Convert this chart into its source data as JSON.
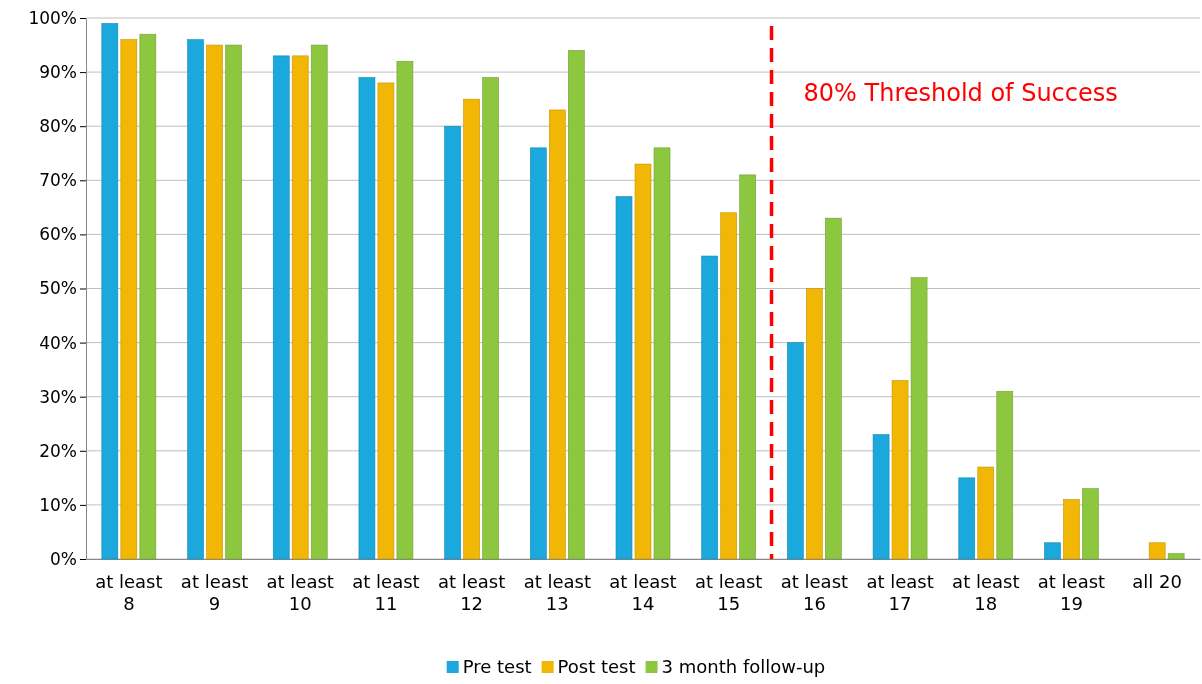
{
  "chart_data": {
    "type": "bar",
    "categories": [
      "at least 8",
      "at least 9",
      "at least 10",
      "at least 11",
      "at least 12",
      "at least 13",
      "at least 14",
      "at least 15",
      "at least 16",
      "at least 17",
      "at least 18",
      "at least 19",
      "all 20"
    ],
    "series": [
      {
        "name": "Pre test",
        "color": "#1ba8dc",
        "values": [
          99,
          96,
          93,
          89,
          80,
          76,
          67,
          56,
          40,
          23,
          15,
          3,
          0
        ]
      },
      {
        "name": "Post test",
        "color": "#f2b705",
        "values": [
          96,
          95,
          93,
          88,
          85,
          83,
          73,
          64,
          50,
          33,
          17,
          11,
          3
        ]
      },
      {
        "name": "3 month follow-up",
        "color": "#8dc63f",
        "values": [
          97,
          95,
          95,
          92,
          89,
          94,
          76,
          71,
          63,
          52,
          31,
          13,
          1
        ]
      }
    ],
    "ylim": [
      0,
      100
    ],
    "yticks": [
      {
        "value": 0,
        "label": "0%"
      },
      {
        "value": 10,
        "label": "10%"
      },
      {
        "value": 20,
        "label": "20%"
      },
      {
        "value": 30,
        "label": "30%"
      },
      {
        "value": 40,
        "label": "40%"
      },
      {
        "value": 50,
        "label": "50%"
      },
      {
        "value": 60,
        "label": "60%"
      },
      {
        "value": 70,
        "label": "70%"
      },
      {
        "value": 80,
        "label": "80%"
      },
      {
        "value": 90,
        "label": "90%"
      },
      {
        "value": 100,
        "label": "100%"
      }
    ],
    "grid": "y",
    "legend": "bottom",
    "annotations": [
      "80% Threshold of Success"
    ]
  }
}
